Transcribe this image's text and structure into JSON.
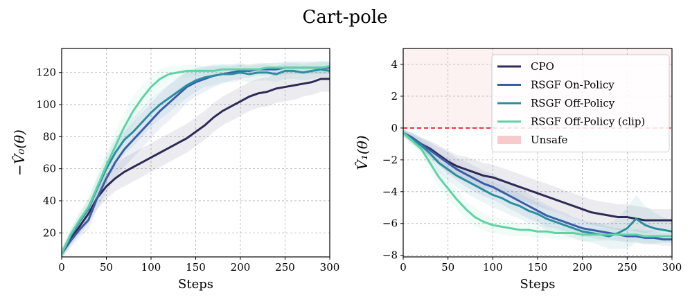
{
  "figure": {
    "title": "Cart-pole"
  },
  "chart_data": [
    {
      "type": "line",
      "title": "",
      "xlabel": "Steps",
      "ylabel": "−V̂₀(θ)",
      "xlim": [
        0,
        300
      ],
      "ylim": [
        5,
        135
      ],
      "xticks": [
        0,
        50,
        100,
        150,
        200,
        250,
        300
      ],
      "yticks": [
        20,
        40,
        60,
        80,
        100,
        120
      ],
      "grid": true,
      "legend": "none",
      "series": [
        {
          "name": "CPO",
          "color": "#2e2a55",
          "x": [
            0,
            10,
            20,
            30,
            40,
            50,
            60,
            70,
            80,
            90,
            100,
            110,
            120,
            130,
            140,
            150,
            160,
            170,
            180,
            190,
            200,
            210,
            220,
            230,
            240,
            250,
            260,
            270,
            280,
            290,
            300
          ],
          "y": [
            7,
            16,
            24,
            32,
            42,
            49,
            54,
            58,
            61,
            64,
            67,
            70,
            73,
            76,
            79,
            83,
            87,
            92,
            96,
            99,
            102,
            105,
            107,
            108,
            110,
            111,
            112,
            113,
            114,
            116,
            116
          ],
          "band": [
            3,
            4,
            5,
            6,
            7,
            8,
            8,
            9,
            9,
            9,
            9,
            9,
            9,
            9,
            9,
            9,
            9,
            9,
            9,
            9,
            9,
            9,
            9,
            9,
            9,
            9,
            9,
            8,
            8,
            8,
            8
          ]
        },
        {
          "name": "RSGF On-Policy",
          "color": "#3b5ca8",
          "x": [
            0,
            10,
            20,
            30,
            40,
            50,
            60,
            70,
            80,
            90,
            100,
            110,
            120,
            130,
            140,
            150,
            160,
            170,
            180,
            190,
            200,
            210,
            220,
            230,
            240,
            250,
            260,
            270,
            280,
            290,
            300
          ],
          "y": [
            7,
            15,
            22,
            28,
            42,
            54,
            64,
            72,
            78,
            84,
            90,
            96,
            101,
            106,
            111,
            114,
            116,
            118,
            119,
            120,
            121,
            121,
            122,
            122,
            122,
            123,
            123,
            123,
            123,
            123,
            123
          ],
          "band": [
            3,
            4,
            5,
            6,
            7,
            9,
            10,
            11,
            11,
            11,
            11,
            11,
            11,
            11,
            10,
            9,
            8,
            7,
            6,
            5,
            5,
            4,
            4,
            4,
            4,
            4,
            4,
            4,
            4,
            4,
            4
          ]
        },
        {
          "name": "RSGF Off-Policy",
          "color": "#2b8e9f",
          "x": [
            0,
            10,
            20,
            30,
            40,
            50,
            60,
            70,
            80,
            90,
            100,
            110,
            120,
            130,
            140,
            150,
            160,
            170,
            180,
            190,
            200,
            210,
            220,
            230,
            240,
            250,
            260,
            270,
            280,
            290,
            300
          ],
          "y": [
            7,
            18,
            27,
            35,
            48,
            60,
            70,
            78,
            83,
            89,
            95,
            100,
            104,
            108,
            112,
            115,
            117,
            118,
            119,
            119,
            120,
            119,
            120,
            120,
            119,
            121,
            121,
            120,
            121,
            122,
            121
          ],
          "band": [
            3,
            4,
            5,
            6,
            7,
            8,
            9,
            9,
            9,
            9,
            9,
            9,
            9,
            8,
            8,
            7,
            6,
            6,
            5,
            5,
            5,
            5,
            5,
            5,
            5,
            5,
            5,
            5,
            5,
            5,
            5
          ]
        },
        {
          "name": "RSGF Off-Policy (clip)",
          "color": "#5fd3a6",
          "x": [
            0,
            10,
            20,
            30,
            40,
            50,
            60,
            70,
            80,
            90,
            100,
            110,
            120,
            130,
            140,
            150,
            160,
            170,
            180,
            190,
            200,
            210,
            220,
            230,
            240,
            250,
            260,
            270,
            280,
            290,
            300
          ],
          "y": [
            7,
            19,
            28,
            36,
            49,
            62,
            74,
            86,
            96,
            104,
            111,
            116,
            119,
            120,
            121,
            121,
            121,
            121,
            122,
            122,
            122,
            122,
            122,
            123,
            123,
            123,
            123,
            123,
            123,
            123,
            124
          ],
          "band": [
            3,
            4,
            5,
            6,
            7,
            8,
            9,
            9,
            9,
            8,
            7,
            6,
            5,
            4,
            4,
            4,
            3,
            3,
            3,
            3,
            3,
            3,
            3,
            3,
            3,
            3,
            3,
            3,
            3,
            3,
            3
          ]
        }
      ]
    },
    {
      "type": "line",
      "title": "",
      "xlabel": "Steps",
      "ylabel": "V̂₁(θ)",
      "xlim": [
        0,
        300
      ],
      "ylim": [
        -8.1,
        5.0
      ],
      "xticks": [
        0,
        50,
        100,
        150,
        200,
        250,
        300
      ],
      "yticks": [
        -8,
        -6,
        -4,
        -2,
        0,
        2,
        4
      ],
      "grid": true,
      "legend": "top-right",
      "unsafe_region": {
        "label": "Unsafe",
        "from": 0,
        "color": "#f4b5b5"
      },
      "threshold": {
        "value": 0,
        "color": "#e8141b"
      },
      "series": [
        {
          "name": "CPO",
          "color": "#2e2a55",
          "x": [
            0,
            10,
            20,
            30,
            40,
            50,
            60,
            70,
            80,
            90,
            100,
            110,
            120,
            130,
            140,
            150,
            160,
            170,
            180,
            190,
            200,
            210,
            220,
            230,
            240,
            250,
            260,
            270,
            280,
            290,
            300
          ],
          "y": [
            -0.3,
            -0.6,
            -1.0,
            -1.3,
            -1.7,
            -2.1,
            -2.4,
            -2.6,
            -2.8,
            -3.0,
            -3.1,
            -3.3,
            -3.5,
            -3.7,
            -3.9,
            -4.1,
            -4.3,
            -4.5,
            -4.7,
            -4.9,
            -5.1,
            -5.3,
            -5.4,
            -5.5,
            -5.6,
            -5.6,
            -5.7,
            -5.8,
            -5.8,
            -5.8,
            -5.8
          ],
          "band": [
            0.2,
            0.3,
            0.4,
            0.5,
            0.6,
            0.7,
            0.7,
            0.8,
            0.8,
            0.8,
            0.8,
            0.8,
            0.8,
            0.8,
            0.8,
            0.8,
            0.8,
            0.8,
            0.8,
            0.8,
            0.8,
            0.8,
            0.8,
            0.8,
            0.8,
            0.8,
            0.8,
            0.8,
            0.7,
            0.7,
            0.7
          ]
        },
        {
          "name": "RSGF On-Policy",
          "color": "#3b5ca8",
          "x": [
            0,
            10,
            20,
            30,
            40,
            50,
            60,
            70,
            80,
            90,
            100,
            110,
            120,
            130,
            140,
            150,
            160,
            170,
            180,
            190,
            200,
            210,
            220,
            230,
            240,
            250,
            260,
            270,
            280,
            290,
            300
          ],
          "y": [
            -0.3,
            -0.6,
            -1.0,
            -1.4,
            -1.8,
            -2.2,
            -2.6,
            -2.9,
            -3.2,
            -3.5,
            -3.7,
            -4.0,
            -4.3,
            -4.6,
            -4.9,
            -5.2,
            -5.5,
            -5.7,
            -5.9,
            -6.1,
            -6.3,
            -6.4,
            -6.5,
            -6.6,
            -6.7,
            -6.8,
            -6.8,
            -6.9,
            -6.9,
            -7.0,
            -7.0
          ],
          "band": [
            0.2,
            0.3,
            0.4,
            0.5,
            0.6,
            0.7,
            0.7,
            0.8,
            0.8,
            0.8,
            0.8,
            0.8,
            0.8,
            0.8,
            0.8,
            0.7,
            0.7,
            0.6,
            0.6,
            0.5,
            0.5,
            0.5,
            0.5,
            0.4,
            0.4,
            0.4,
            0.4,
            0.4,
            0.4,
            0.4,
            0.4
          ]
        },
        {
          "name": "RSGF Off-Policy",
          "color": "#2b8e9f",
          "x": [
            0,
            10,
            20,
            30,
            40,
            50,
            60,
            70,
            80,
            90,
            100,
            110,
            120,
            130,
            140,
            150,
            160,
            170,
            180,
            190,
            200,
            210,
            220,
            230,
            240,
            250,
            260,
            270,
            280,
            290,
            300
          ],
          "y": [
            -0.3,
            -0.7,
            -1.1,
            -1.6,
            -2.2,
            -2.6,
            -3.0,
            -3.3,
            -3.6,
            -3.9,
            -4.2,
            -4.4,
            -4.7,
            -4.9,
            -5.2,
            -5.4,
            -5.7,
            -5.9,
            -6.1,
            -6.3,
            -6.5,
            -6.6,
            -6.7,
            -6.8,
            -6.6,
            -6.3,
            -5.7,
            -6.1,
            -6.3,
            -6.4,
            -6.5
          ],
          "band": [
            0.2,
            0.3,
            0.4,
            0.5,
            0.6,
            0.7,
            0.7,
            0.8,
            0.8,
            0.8,
            0.8,
            0.8,
            0.8,
            0.8,
            0.8,
            0.7,
            0.7,
            0.6,
            0.6,
            0.6,
            0.6,
            0.6,
            0.7,
            0.8,
            1.0,
            1.3,
            1.5,
            1.2,
            1.0,
            0.8,
            0.7
          ]
        },
        {
          "name": "RSGF Off-Policy (clip)",
          "color": "#5fd3a6",
          "x": [
            0,
            10,
            20,
            30,
            40,
            50,
            60,
            70,
            80,
            90,
            100,
            110,
            120,
            130,
            140,
            150,
            160,
            170,
            180,
            190,
            200,
            210,
            220,
            230,
            240,
            250,
            260,
            270,
            280,
            290,
            300
          ],
          "y": [
            -0.3,
            -0.8,
            -1.3,
            -2.2,
            -3.1,
            -3.8,
            -4.5,
            -5.1,
            -5.6,
            -5.9,
            -6.1,
            -6.2,
            -6.3,
            -6.4,
            -6.4,
            -6.5,
            -6.5,
            -6.6,
            -6.6,
            -6.6,
            -6.7,
            -6.7,
            -6.7,
            -6.7,
            -6.7,
            -6.7,
            -6.7,
            -6.8,
            -6.8,
            -6.8,
            -6.8
          ],
          "band": [
            0.2,
            0.3,
            0.4,
            0.5,
            0.6,
            0.6,
            0.6,
            0.6,
            0.6,
            0.5,
            0.5,
            0.5,
            0.5,
            0.4,
            0.4,
            0.4,
            0.4,
            0.4,
            0.4,
            0.4,
            0.4,
            0.4,
            0.4,
            0.4,
            0.4,
            0.4,
            0.4,
            0.4,
            0.4,
            0.4,
            0.4
          ]
        }
      ]
    }
  ]
}
